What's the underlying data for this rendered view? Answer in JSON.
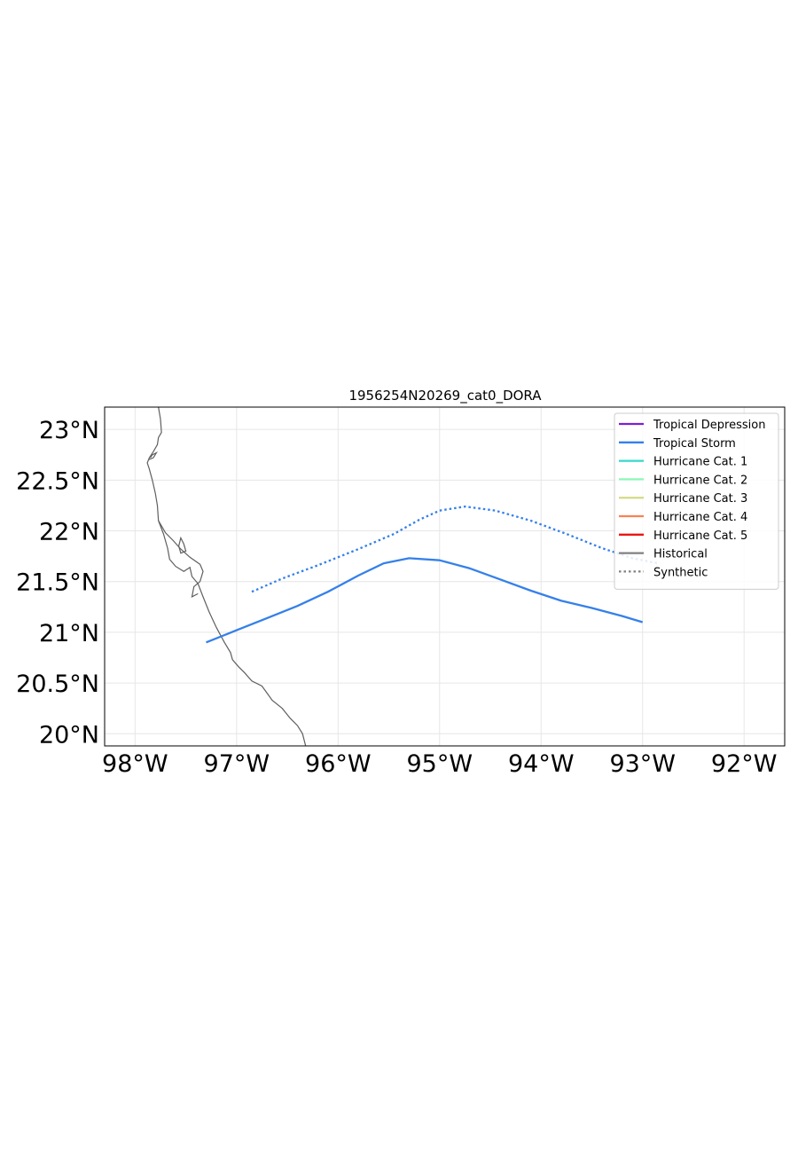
{
  "chart_data": {
    "type": "line",
    "title": "1956254N20269_cat0_DORA",
    "xlim": [
      -98.3,
      -91.6
    ],
    "ylim": [
      19.88,
      23.22
    ],
    "x_ticks": [
      {
        "value": -98,
        "label": "98°W"
      },
      {
        "value": -97,
        "label": "97°W"
      },
      {
        "value": -96,
        "label": "96°W"
      },
      {
        "value": -95,
        "label": "95°W"
      },
      {
        "value": -94,
        "label": "94°W"
      },
      {
        "value": -93,
        "label": "93°W"
      },
      {
        "value": -92,
        "label": "92°W"
      }
    ],
    "y_ticks": [
      {
        "value": 20,
        "label": "20°N"
      },
      {
        "value": 20.5,
        "label": "20.5°N"
      },
      {
        "value": 21,
        "label": "21°N"
      },
      {
        "value": 21.5,
        "label": "21.5°N"
      },
      {
        "value": 22,
        "label": "22°N"
      },
      {
        "value": 22.5,
        "label": "22.5°N"
      },
      {
        "value": 23,
        "label": "23°N"
      }
    ],
    "grid": true,
    "legend_position": "top-right",
    "legend": [
      {
        "label": "Tropical Depression",
        "color": "#7b1fd8",
        "style": "solid"
      },
      {
        "label": "Tropical Storm",
        "color": "#3580ea",
        "style": "solid"
      },
      {
        "label": "Hurricane Cat. 1",
        "color": "#36d9c9",
        "style": "solid"
      },
      {
        "label": "Hurricane Cat. 2",
        "color": "#8ef7b6",
        "style": "solid"
      },
      {
        "label": "Hurricane Cat. 3",
        "color": "#d5dc8b",
        "style": "solid"
      },
      {
        "label": "Hurricane Cat. 4",
        "color": "#fb8152",
        "style": "solid"
      },
      {
        "label": "Hurricane Cat. 5",
        "color": "#ea1515",
        "style": "solid"
      },
      {
        "label": "Historical",
        "color": "#808080",
        "style": "solid"
      },
      {
        "label": "Synthetic",
        "color": "#808080",
        "style": "dotted"
      }
    ],
    "series": [
      {
        "kind": "historical",
        "category": "Tropical Storm",
        "color": "#3580ea",
        "style": "solid",
        "points": [
          [
            -97.3,
            20.9
          ],
          [
            -97.0,
            21.02
          ],
          [
            -96.7,
            21.14
          ],
          [
            -96.4,
            21.26
          ],
          [
            -96.1,
            21.4
          ],
          [
            -95.8,
            21.56
          ],
          [
            -95.55,
            21.68
          ],
          [
            -95.3,
            21.73
          ],
          [
            -95.0,
            21.71
          ],
          [
            -94.7,
            21.63
          ],
          [
            -94.4,
            21.52
          ],
          [
            -94.1,
            21.41
          ],
          [
            -93.8,
            21.31
          ],
          [
            -93.5,
            21.24
          ],
          [
            -93.2,
            21.16
          ],
          [
            -93.0,
            21.1
          ]
        ]
      },
      {
        "kind": "synthetic",
        "category": "Tropical Storm",
        "color": "#3580ea",
        "style": "dotted",
        "points": [
          [
            -96.85,
            21.4
          ],
          [
            -96.55,
            21.53
          ],
          [
            -96.2,
            21.66
          ],
          [
            -95.8,
            21.82
          ],
          [
            -95.45,
            21.97
          ],
          [
            -95.2,
            22.11
          ],
          [
            -95.0,
            22.2
          ],
          [
            -94.75,
            22.24
          ],
          [
            -94.45,
            22.2
          ],
          [
            -94.1,
            22.1
          ],
          [
            -93.75,
            21.97
          ],
          [
            -93.4,
            21.83
          ],
          [
            -93.1,
            21.73
          ],
          [
            -92.85,
            21.68
          ]
        ]
      }
    ],
    "coastline": [
      [
        [
          -97.77,
          23.22
        ],
        [
          -97.75,
          23.1
        ],
        [
          -97.74,
          22.97
        ],
        [
          -97.77,
          22.92
        ],
        [
          -97.78,
          22.85
        ],
        [
          -97.82,
          22.78
        ],
        [
          -97.86,
          22.72
        ],
        [
          -97.88,
          22.67
        ],
        [
          -97.86,
          22.61
        ],
        [
          -97.83,
          22.5
        ],
        [
          -97.8,
          22.37
        ],
        [
          -97.78,
          22.25
        ],
        [
          -97.77,
          22.1
        ],
        [
          -97.72,
          21.97
        ],
        [
          -97.68,
          21.83
        ],
        [
          -97.66,
          21.72
        ],
        [
          -97.6,
          21.65
        ],
        [
          -97.52,
          21.6
        ],
        [
          -97.46,
          21.64
        ],
        [
          -97.44,
          21.55
        ],
        [
          -97.38,
          21.48
        ],
        [
          -97.33,
          21.35
        ],
        [
          -97.27,
          21.2
        ],
        [
          -97.2,
          21.05
        ],
        [
          -97.12,
          20.9
        ],
        [
          -97.06,
          20.8
        ],
        [
          -97.04,
          20.73
        ],
        [
          -96.98,
          20.66
        ],
        [
          -96.92,
          20.6
        ],
        [
          -96.85,
          20.52
        ],
        [
          -96.75,
          20.47
        ],
        [
          -96.7,
          20.4
        ],
        [
          -96.65,
          20.33
        ],
        [
          -96.55,
          20.25
        ],
        [
          -96.47,
          20.15
        ],
        [
          -96.4,
          20.08
        ],
        [
          -96.35,
          20.0
        ],
        [
          -96.32,
          19.88
        ]
      ],
      [
        [
          -97.77,
          22.1
        ],
        [
          -97.7,
          21.98
        ],
        [
          -97.62,
          21.9
        ],
        [
          -97.55,
          21.82
        ],
        [
          -97.46,
          21.74
        ],
        [
          -97.36,
          21.67
        ],
        [
          -97.33,
          21.6
        ],
        [
          -97.36,
          21.5
        ],
        [
          -97.42,
          21.45
        ],
        [
          -97.44,
          21.35
        ],
        [
          -97.38,
          21.38
        ]
      ],
      [
        [
          -97.57,
          21.85
        ],
        [
          -97.55,
          21.93
        ],
        [
          -97.52,
          21.87
        ],
        [
          -97.5,
          21.8
        ],
        [
          -97.55,
          21.78
        ],
        [
          -97.57,
          21.85
        ]
      ],
      [
        [
          -97.87,
          22.7
        ],
        [
          -97.82,
          22.72
        ],
        [
          -97.79,
          22.77
        ],
        [
          -97.83,
          22.75
        ],
        [
          -97.85,
          22.72
        ]
      ]
    ]
  }
}
